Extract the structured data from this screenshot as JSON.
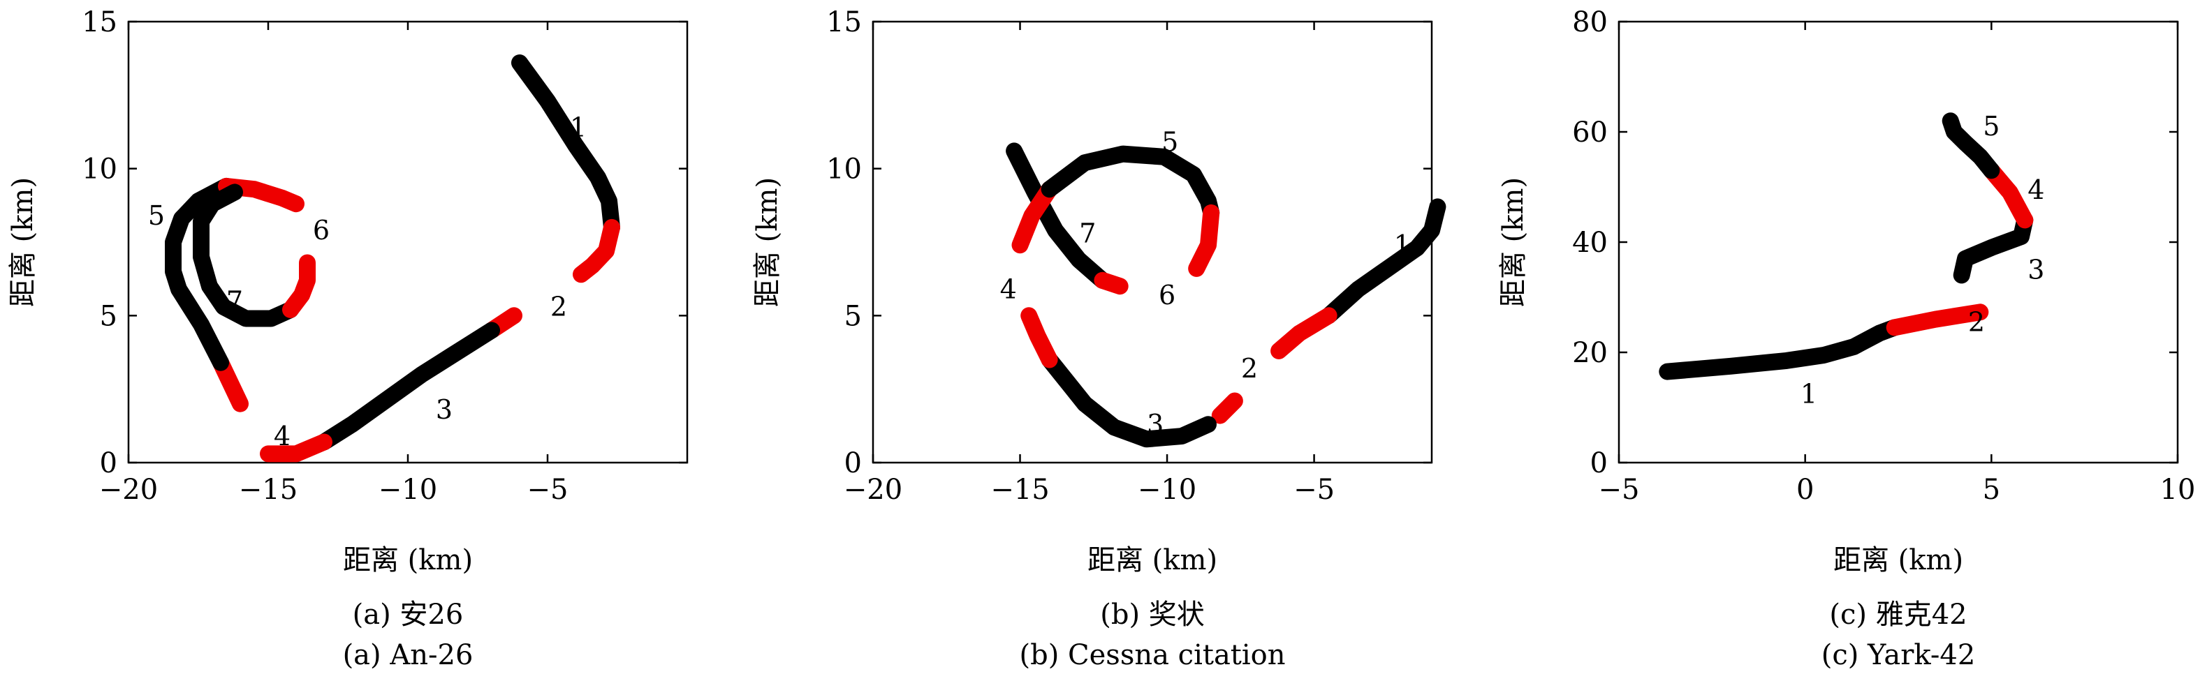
{
  "colors": {
    "track": "#000000",
    "highlight": "#ee0000"
  },
  "chart_data": [
    {
      "type": "line",
      "caption_cn": "(a) 安26",
      "caption_en": "(a) An-26",
      "xlabel": "距离 (km)",
      "ylabel": "距离 (km)",
      "xlim": [
        -20,
        0
      ],
      "ylim": [
        0,
        15
      ],
      "xticks": [
        -20,
        -15,
        -10,
        -5
      ],
      "yticks": [
        0,
        5,
        10,
        15
      ],
      "tracks": [
        {
          "color": "black",
          "points": [
            [
              -6,
              13.6
            ],
            [
              -5,
              12.3
            ],
            [
              -4,
              10.8
            ],
            [
              -3.2,
              9.7
            ],
            [
              -2.8,
              8.9
            ],
            [
              -2.7,
              8.0
            ]
          ]
        },
        {
          "color": "red",
          "points": [
            [
              -2.7,
              8.0
            ],
            [
              -2.9,
              7.2
            ],
            [
              -3.4,
              6.7
            ],
            [
              -3.8,
              6.4
            ]
          ]
        },
        {
          "color": "red",
          "points": [
            [
              -6.2,
              5.0
            ],
            [
              -7.0,
              4.5
            ]
          ]
        },
        {
          "color": "black",
          "points": [
            [
              -7.0,
              4.5
            ],
            [
              -9.5,
              3.0
            ],
            [
              -12,
              1.3
            ],
            [
              -13.0,
              0.7
            ]
          ]
        },
        {
          "color": "red",
          "points": [
            [
              -13.0,
              0.7
            ],
            [
              -14,
              0.3
            ],
            [
              -15,
              0.3
            ]
          ]
        },
        {
          "color": "red",
          "points": [
            [
              -16.0,
              2.0
            ],
            [
              -16.7,
              3.4
            ]
          ]
        },
        {
          "color": "black",
          "points": [
            [
              -16.7,
              3.4
            ],
            [
              -17.4,
              4.7
            ],
            [
              -18.2,
              5.9
            ],
            [
              -18.4,
              6.5
            ],
            [
              -18.4,
              7.5
            ],
            [
              -18.1,
              8.3
            ],
            [
              -17.5,
              8.9
            ],
            [
              -16.5,
              9.4
            ]
          ]
        },
        {
          "color": "red",
          "points": [
            [
              -16.5,
              9.4
            ],
            [
              -15.5,
              9.3
            ],
            [
              -14.5,
              9.0
            ],
            [
              -14.0,
              8.8
            ]
          ]
        },
        {
          "color": "black",
          "points": [
            [
              -16.2,
              9.2
            ],
            [
              -17,
              8.8
            ],
            [
              -17.4,
              8.2
            ],
            [
              -17.4,
              7.0
            ],
            [
              -17.1,
              6.0
            ],
            [
              -16.6,
              5.3
            ],
            [
              -15.8,
              4.9
            ],
            [
              -14.9,
              4.9
            ],
            [
              -14.2,
              5.2
            ]
          ]
        },
        {
          "color": "red",
          "points": [
            [
              -14.2,
              5.2
            ],
            [
              -13.8,
              5.7
            ],
            [
              -13.6,
              6.2
            ],
            [
              -13.6,
              6.8
            ]
          ]
        }
      ],
      "labels": [
        {
          "text": "1",
          "x": -3.9,
          "y": 11.4
        },
        {
          "text": "2",
          "x": -4.6,
          "y": 5.3
        },
        {
          "text": "3",
          "x": -8.7,
          "y": 1.8
        },
        {
          "text": "4",
          "x": -14.5,
          "y": 0.9
        },
        {
          "text": "5",
          "x": -19.0,
          "y": 8.4
        },
        {
          "text": "6",
          "x": -13.1,
          "y": 7.9
        },
        {
          "text": "7",
          "x": -16.2,
          "y": 5.5
        }
      ]
    },
    {
      "type": "line",
      "caption_cn": "(b) 奖状",
      "caption_en": "(b) Cessna citation",
      "xlabel": "距离 (km)",
      "ylabel": "距离 (km)",
      "xlim": [
        -20,
        -1
      ],
      "ylim": [
        0,
        15
      ],
      "xticks": [
        -20,
        -15,
        -10,
        -5
      ],
      "yticks": [
        0,
        5,
        10,
        15
      ],
      "tracks": [
        {
          "color": "black",
          "points": [
            [
              -0.8,
              8.7
            ],
            [
              -1.0,
              7.9
            ],
            [
              -1.5,
              7.3
            ],
            [
              -2.5,
              6.6
            ],
            [
              -3.5,
              5.9
            ],
            [
              -4.5,
              5.0
            ]
          ]
        },
        {
          "color": "red",
          "points": [
            [
              -4.5,
              5.0
            ],
            [
              -5.5,
              4.4
            ],
            [
              -6.2,
              3.8
            ]
          ]
        },
        {
          "color": "red",
          "points": [
            [
              -7.7,
              2.1
            ],
            [
              -8.2,
              1.6
            ]
          ]
        },
        {
          "color": "black",
          "points": [
            [
              -8.6,
              1.3
            ],
            [
              -9.5,
              0.9
            ],
            [
              -10.7,
              0.8
            ],
            [
              -11.8,
              1.2
            ],
            [
              -12.8,
              2.0
            ],
            [
              -13.6,
              3.0
            ],
            [
              -14.0,
              3.5
            ]
          ]
        },
        {
          "color": "red",
          "points": [
            [
              -14.0,
              3.5
            ],
            [
              -14.4,
              4.3
            ],
            [
              -14.7,
              5.0
            ]
          ]
        },
        {
          "color": "black",
          "points": [
            [
              -15.2,
              10.6
            ],
            [
              -14.5,
              9.2
            ],
            [
              -13.8,
              7.9
            ],
            [
              -13.0,
              6.9
            ],
            [
              -12.2,
              6.2
            ]
          ]
        },
        {
          "color": "red",
          "points": [
            [
              -12.2,
              6.2
            ],
            [
              -11.6,
              6.0
            ]
          ]
        },
        {
          "color": "red",
          "points": [
            [
              -15.0,
              7.4
            ],
            [
              -14.6,
              8.4
            ],
            [
              -14.0,
              9.3
            ]
          ]
        },
        {
          "color": "black",
          "points": [
            [
              -14.0,
              9.3
            ],
            [
              -12.8,
              10.2
            ],
            [
              -11.5,
              10.5
            ],
            [
              -10.1,
              10.4
            ],
            [
              -9.1,
              9.8
            ],
            [
              -8.6,
              8.9
            ],
            [
              -8.5,
              8.5
            ]
          ]
        },
        {
          "color": "red",
          "points": [
            [
              -8.5,
              8.5
            ],
            [
              -8.6,
              7.4
            ],
            [
              -9.0,
              6.6
            ]
          ]
        }
      ],
      "labels": [
        {
          "text": "1",
          "x": -2.0,
          "y": 7.4
        },
        {
          "text": "2",
          "x": -7.2,
          "y": 3.2
        },
        {
          "text": "3",
          "x": -10.4,
          "y": 1.3
        },
        {
          "text": "4",
          "x": -15.4,
          "y": 5.9
        },
        {
          "text": "5",
          "x": -9.9,
          "y": 10.9
        },
        {
          "text": "6",
          "x": -10.0,
          "y": 5.7
        },
        {
          "text": "7",
          "x": -12.7,
          "y": 7.8
        }
      ]
    },
    {
      "type": "line",
      "caption_cn": "(c) 雅克42",
      "caption_en": "(c) Yark-42",
      "xlabel": "距离 (km)",
      "ylabel": "距离 (km)",
      "xlim": [
        -5,
        10
      ],
      "ylim": [
        0,
        80
      ],
      "xticks": [
        -5,
        0,
        5,
        10
      ],
      "yticks": [
        0,
        20,
        40,
        60,
        80
      ],
      "tracks": [
        {
          "color": "black",
          "points": [
            [
              -3.7,
              16.5
            ],
            [
              -2,
              17.5
            ],
            [
              -0.5,
              18.5
            ],
            [
              0.5,
              19.5
            ],
            [
              1.3,
              21
            ],
            [
              2.0,
              23.5
            ],
            [
              2.4,
              24.5
            ]
          ]
        },
        {
          "color": "red",
          "points": [
            [
              2.4,
              24.5
            ],
            [
              3.5,
              26
            ],
            [
              4.7,
              27.3
            ]
          ]
        },
        {
          "color": "black",
          "points": [
            [
              4.2,
              34
            ],
            [
              4.3,
              37
            ],
            [
              5,
              39
            ],
            [
              5.8,
              41
            ],
            [
              5.9,
              44
            ]
          ]
        },
        {
          "color": "red",
          "points": [
            [
              5.9,
              44
            ],
            [
              5.5,
              49
            ],
            [
              5.0,
              53
            ]
          ]
        },
        {
          "color": "black",
          "points": [
            [
              5.0,
              53
            ],
            [
              4.7,
              55.5
            ],
            [
              4.3,
              58
            ],
            [
              4.0,
              60
            ],
            [
              3.9,
              62
            ]
          ]
        }
      ],
      "labels": [
        {
          "text": "1",
          "x": 0.1,
          "y": 12.5
        },
        {
          "text": "2",
          "x": 4.6,
          "y": 25.5
        },
        {
          "text": "3",
          "x": 6.2,
          "y": 35.0
        },
        {
          "text": "4",
          "x": 6.2,
          "y": 49.5
        },
        {
          "text": "5",
          "x": 5.0,
          "y": 61.0
        }
      ]
    }
  ]
}
